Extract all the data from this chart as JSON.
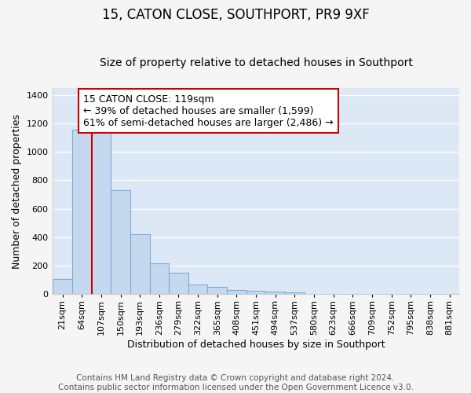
{
  "title": "15, CATON CLOSE, SOUTHPORT, PR9 9XF",
  "subtitle": "Size of property relative to detached houses in Southport",
  "xlabel": "Distribution of detached houses by size in Southport",
  "ylabel": "Number of detached properties",
  "bin_labels": [
    "21sqm",
    "64sqm",
    "107sqm",
    "150sqm",
    "193sqm",
    "236sqm",
    "279sqm",
    "322sqm",
    "365sqm",
    "408sqm",
    "451sqm",
    "494sqm",
    "537sqm",
    "580sqm",
    "623sqm",
    "666sqm",
    "709sqm",
    "752sqm",
    "795sqm",
    "838sqm",
    "881sqm"
  ],
  "bar_values": [
    107,
    1155,
    1140,
    730,
    420,
    220,
    150,
    70,
    50,
    32,
    22,
    17,
    15,
    0,
    0,
    0,
    0,
    0,
    0,
    0,
    0
  ],
  "bar_color": "#c5d8ee",
  "bar_edge_color": "#7aaed6",
  "vline_color": "#cc0000",
  "annotation_line1": "15 CATON CLOSE: 119sqm",
  "annotation_line2": "← 39% of detached houses are smaller (1,599)",
  "annotation_line3": "61% of semi-detached houses are larger (2,486) →",
  "annotation_box_color": "#ffffff",
  "annotation_box_edge": "#cc0000",
  "ylim": [
    0,
    1450
  ],
  "yticks": [
    0,
    200,
    400,
    600,
    800,
    1000,
    1200,
    1400
  ],
  "footer_line1": "Contains HM Land Registry data © Crown copyright and database right 2024.",
  "footer_line2": "Contains public sector information licensed under the Open Government Licence v3.0.",
  "plot_bg": "#dce8f5",
  "fig_bg": "#f5f5f5",
  "grid_color": "#ffffff",
  "title_fontsize": 12,
  "subtitle_fontsize": 10,
  "axis_label_fontsize": 9,
  "tick_fontsize": 8,
  "annotation_fontsize": 9,
  "footer_fontsize": 7.5,
  "bar_width": 1.0,
  "vline_bar_idx": 2
}
